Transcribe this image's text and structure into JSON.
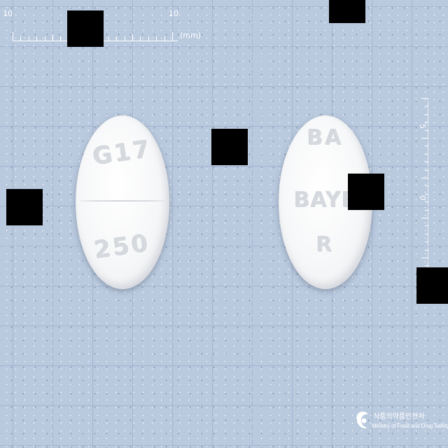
{
  "ruler": {
    "top_left_label": "10",
    "top_right_label": "10",
    "unit_label": "(mm)",
    "right_label_upper": "5",
    "right_label_middle": "0"
  },
  "tablet_left": {
    "imprint_top": "G17",
    "imprint_bottom": "250",
    "color": "#f5f6f7"
  },
  "tablet_right": {
    "imprint_top": "BA",
    "imprint_middle": "BAYE",
    "imprint_bottom": "R",
    "color": "#f5f6f7"
  },
  "watermark": {
    "korean": "식품의약품안전처",
    "english": "Ministry of Food and Drug Safety"
  },
  "colors": {
    "background": "#b9c9de",
    "redaction": "#000000"
  }
}
